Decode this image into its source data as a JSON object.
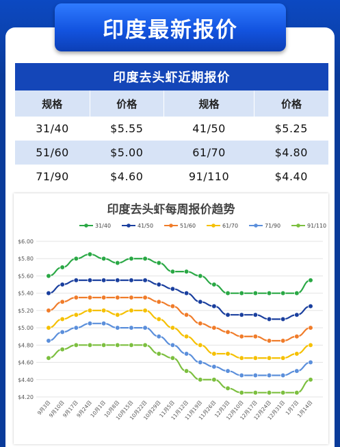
{
  "header": {
    "title": "印度最新报价"
  },
  "price_table": {
    "title": "印度去头虾近期报价",
    "columns": [
      "规格",
      "价格",
      "规格",
      "价格"
    ],
    "rows": [
      [
        "31/40",
        "$5.55",
        "41/50",
        "$5.25"
      ],
      [
        "51/60",
        "$5.00",
        "61/70",
        "$4.80"
      ],
      [
        "71/90",
        "$4.60",
        "91/110",
        "$4.40"
      ]
    ]
  },
  "chart_data": {
    "type": "line",
    "title": "印度去头虾每周报价趋势",
    "categories": [
      "9月3日",
      "9月10日",
      "9月17日",
      "9月24日",
      "10月1日",
      "10月8日",
      "10月15日",
      "10月22日",
      "10月29日",
      "11月5日",
      "11月12日",
      "11月19日",
      "11月26日",
      "12月3日",
      "12月10日",
      "12月17日",
      "12月24日",
      "12月31日",
      "1月7日",
      "1月14日"
    ],
    "ylim": [
      4.2,
      6.0
    ],
    "yticks": [
      "$4.20",
      "$4.40",
      "$4.60",
      "$4.80",
      "$5.00",
      "$5.20",
      "$5.40",
      "$5.60",
      "$5.80",
      "$6.00"
    ],
    "grid": true,
    "legend_position": "top",
    "series": [
      {
        "name": "31/40",
        "color": "#2aa845",
        "values": [
          5.6,
          5.7,
          5.8,
          5.85,
          5.8,
          5.75,
          5.8,
          5.8,
          5.75,
          5.65,
          5.65,
          5.6,
          5.5,
          5.4,
          5.4,
          5.4,
          5.4,
          5.4,
          5.4,
          5.55
        ]
      },
      {
        "name": "41/50",
        "color": "#1a3f9e",
        "values": [
          5.4,
          5.5,
          5.55,
          5.55,
          5.55,
          5.55,
          5.55,
          5.55,
          5.5,
          5.45,
          5.4,
          5.3,
          5.25,
          5.15,
          5.15,
          5.15,
          5.1,
          5.1,
          5.15,
          5.25
        ]
      },
      {
        "name": "51/60",
        "color": "#f07c2a",
        "values": [
          5.2,
          5.3,
          5.35,
          5.35,
          5.35,
          5.35,
          5.35,
          5.35,
          5.3,
          5.25,
          5.15,
          5.05,
          5.0,
          4.95,
          4.9,
          4.9,
          4.85,
          4.85,
          4.9,
          5.0
        ]
      },
      {
        "name": "61/70",
        "color": "#f5c000",
        "values": [
          5.0,
          5.1,
          5.15,
          5.2,
          5.2,
          5.15,
          5.2,
          5.2,
          5.1,
          5.0,
          4.9,
          4.8,
          4.7,
          4.7,
          4.65,
          4.65,
          4.65,
          4.65,
          4.7,
          4.8
        ]
      },
      {
        "name": "71/90",
        "color": "#5b8fdb",
        "values": [
          4.85,
          4.95,
          5.0,
          5.05,
          5.05,
          5.0,
          5.0,
          5.0,
          4.9,
          4.8,
          4.7,
          4.6,
          4.55,
          4.5,
          4.45,
          4.45,
          4.45,
          4.45,
          4.5,
          4.6
        ]
      },
      {
        "name": "91/110",
        "color": "#7cbf3f",
        "values": [
          4.65,
          4.75,
          4.8,
          4.8,
          4.8,
          4.8,
          4.8,
          4.8,
          4.7,
          4.65,
          4.5,
          4.4,
          4.4,
          4.3,
          4.25,
          4.25,
          4.25,
          4.25,
          4.25,
          4.4
        ]
      }
    ]
  }
}
